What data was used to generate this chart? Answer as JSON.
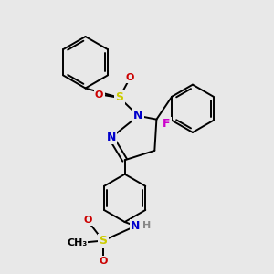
{
  "bg_color": "#e8e8e8",
  "colors": {
    "C": "#000000",
    "N": "#0000cc",
    "O": "#cc0000",
    "S": "#cccc00",
    "F": "#cc00cc",
    "H": "#888888"
  },
  "lw": 1.4,
  "fs": 9,
  "fs_small": 8
}
